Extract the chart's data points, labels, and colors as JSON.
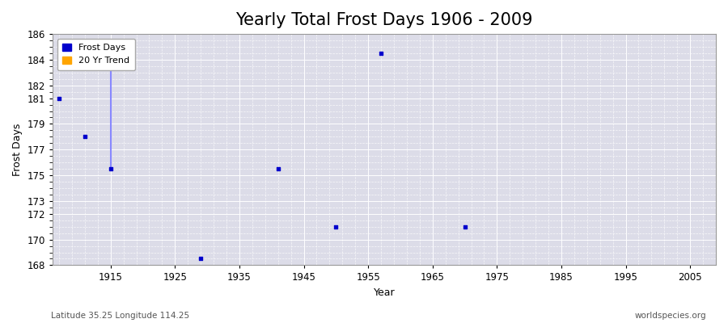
{
  "title": "Yearly Total Frost Days 1906 - 2009",
  "xlabel": "Year",
  "ylabel": "Frost Days",
  "xlim": [
    1906,
    2009
  ],
  "ylim": [
    168,
    186
  ],
  "yticks": [
    168,
    170,
    172,
    173,
    175,
    177,
    179,
    181,
    182,
    184,
    186
  ],
  "xticks": [
    1915,
    1925,
    1935,
    1945,
    1955,
    1965,
    1975,
    1985,
    1995,
    2005
  ],
  "fig_bg_color": "#ffffff",
  "plot_bg_color": "#dcdce8",
  "frost_days_color": "#0000cc",
  "trend_color": "#FFA500",
  "scatter_points": [
    [
      1907,
      181
    ],
    [
      1911,
      178
    ],
    [
      1915,
      175.5
    ],
    [
      1929,
      168.5
    ],
    [
      1941,
      175.5
    ],
    [
      1950,
      171
    ],
    [
      1957,
      184.5
    ],
    [
      1970,
      171
    ]
  ],
  "line_x": [
    1915,
    1915
  ],
  "line_y": [
    184,
    175.5
  ],
  "line_color": "#8888ff",
  "subtitle_left": "Latitude 35.25 Longitude 114.25",
  "subtitle_right": "worldspecies.org",
  "grid_color": "#ffffff",
  "title_fontsize": 15,
  "axis_label_fontsize": 9,
  "tick_fontsize": 8.5
}
